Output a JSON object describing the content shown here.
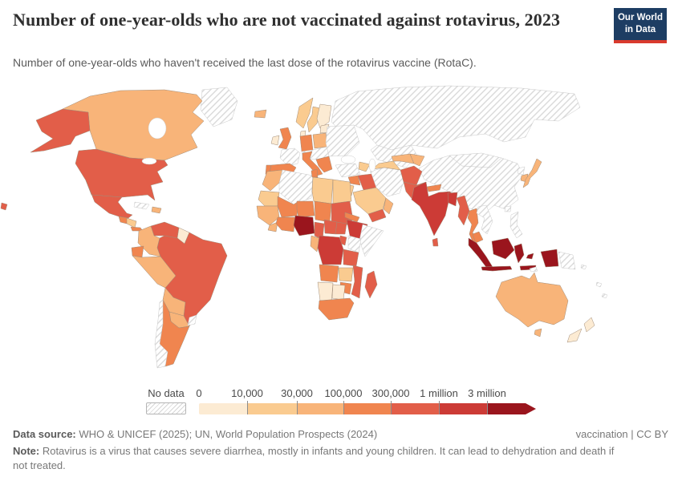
{
  "header": {
    "title": "Number of one-year-olds who are not vaccinated against rotavirus, 2023",
    "subtitle": "Number of one-year-olds who haven't received the last dose of the rotavirus vaccine (RotaC).",
    "logo": {
      "line1": "Our World",
      "line2": "in Data",
      "bg": "#1d3d63",
      "accent": "#d93a2d"
    }
  },
  "legend": {
    "no_data_label": "No data",
    "tick_labels": [
      "0",
      "10,000",
      "30,000",
      "100,000",
      "300,000",
      "1 million",
      "3 million"
    ],
    "colors": [
      "#fcebd3",
      "#facb90",
      "#f8b479",
      "#f0854f",
      "#e25e49",
      "#cc3b36",
      "#9a151d"
    ],
    "hatch_line_color": "#d6d6d6"
  },
  "chart_data": {
    "type": "heatmap",
    "subtype": "world-choropleth",
    "title": "Number of one-year-olds who are not vaccinated against rotavirus, 2023",
    "unit": "one-year-old children not vaccinated",
    "bin_edges": [
      "0",
      "10,000",
      "30,000",
      "100,000",
      "300,000",
      "1 million",
      "3 million"
    ],
    "legend_position": "bottom",
    "regions": [
      {
        "name": "russia",
        "bin": "no-data"
      },
      {
        "name": "china",
        "bin": "no-data"
      },
      {
        "name": "mongolia",
        "bin": "no-data"
      },
      {
        "name": "kazakhstan",
        "bin": "no-data"
      },
      {
        "name": "greenland",
        "bin": "no-data"
      },
      {
        "name": "canada",
        "bin": 2
      },
      {
        "name": "alaska",
        "bin": 4
      },
      {
        "name": "usa",
        "bin": 4
      },
      {
        "name": "hawaii",
        "bin": 4
      },
      {
        "name": "mexico",
        "bin": 4
      },
      {
        "name": "guatemala",
        "bin": 3
      },
      {
        "name": "honduras-nicaragua",
        "bin": 1
      },
      {
        "name": "panama-costa-rica",
        "bin": 3
      },
      {
        "name": "cuba",
        "bin": "no-data"
      },
      {
        "name": "hispaniola",
        "bin": 2
      },
      {
        "name": "trinidad",
        "bin": 3
      },
      {
        "name": "venezuela",
        "bin": 4
      },
      {
        "name": "colombia",
        "bin": 2
      },
      {
        "name": "guyana-suriname",
        "bin": 0
      },
      {
        "name": "ecuador",
        "bin": 3
      },
      {
        "name": "brazil",
        "bin": 4
      },
      {
        "name": "peru",
        "bin": 2
      },
      {
        "name": "bolivia",
        "bin": 2
      },
      {
        "name": "paraguay",
        "bin": 2
      },
      {
        "name": "argentina",
        "bin": 3
      },
      {
        "name": "chile",
        "bin": "no-data"
      },
      {
        "name": "uruguay",
        "bin": "no-data"
      },
      {
        "name": "iceland",
        "bin": 2
      },
      {
        "name": "norway",
        "bin": 1
      },
      {
        "name": "sweden",
        "bin": 1
      },
      {
        "name": "finland",
        "bin": 0
      },
      {
        "name": "denmark",
        "bin": 0
      },
      {
        "name": "baltics",
        "bin": 0
      },
      {
        "name": "uk",
        "bin": 3
      },
      {
        "name": "ireland",
        "bin": 0
      },
      {
        "name": "france",
        "bin": "no-data"
      },
      {
        "name": "spain",
        "bin": 3
      },
      {
        "name": "portugal",
        "bin": 3
      },
      {
        "name": "germany",
        "bin": 3
      },
      {
        "name": "poland",
        "bin": 2
      },
      {
        "name": "central-europe",
        "bin": "no-data"
      },
      {
        "name": "italy",
        "bin": 3
      },
      {
        "name": "sicily",
        "bin": 3
      },
      {
        "name": "balkans",
        "bin": 3
      },
      {
        "name": "ukraine-region",
        "bin": "no-data"
      },
      {
        "name": "turkey",
        "bin": "no-data"
      },
      {
        "name": "caucasus",
        "bin": 1
      },
      {
        "name": "syria",
        "bin": 3
      },
      {
        "name": "levant",
        "bin": 1
      },
      {
        "name": "iraq",
        "bin": 4
      },
      {
        "name": "saudi-arabia",
        "bin": 1
      },
      {
        "name": "yemen",
        "bin": 4
      },
      {
        "name": "oman",
        "bin": 2
      },
      {
        "name": "iran",
        "bin": "no-data"
      },
      {
        "name": "turkmenistan",
        "bin": 1
      },
      {
        "name": "uzbekistan",
        "bin": 2
      },
      {
        "name": "kyrgyz-tajik",
        "bin": 2
      },
      {
        "name": "afghanistan",
        "bin": 4
      },
      {
        "name": "pakistan",
        "bin": 4
      },
      {
        "name": "india",
        "bin": 5
      },
      {
        "name": "nepal",
        "bin": 3
      },
      {
        "name": "bangladesh",
        "bin": 5
      },
      {
        "name": "sri-lanka",
        "bin": 4
      },
      {
        "name": "myanmar",
        "bin": 4
      },
      {
        "name": "thailand",
        "bin": 3
      },
      {
        "name": "laos-vietnam",
        "bin": "no-data"
      },
      {
        "name": "malaysia",
        "bin": 3
      },
      {
        "name": "taiwan",
        "bin": "no-data"
      },
      {
        "name": "north-korea",
        "bin": "no-data"
      },
      {
        "name": "south-korea",
        "bin": 2
      },
      {
        "name": "japan",
        "bin": 2
      },
      {
        "name": "philippines",
        "bin": "no-data"
      },
      {
        "name": "indonesia-sumatra",
        "bin": 6
      },
      {
        "name": "indonesia-java",
        "bin": 6
      },
      {
        "name": "indonesia-borneo",
        "bin": 6
      },
      {
        "name": "indonesia-sulawesi",
        "bin": 6
      },
      {
        "name": "indonesia-islands",
        "bin": 6
      },
      {
        "name": "indonesia-maluku",
        "bin": 6
      },
      {
        "name": "indonesia-papua",
        "bin": 6
      },
      {
        "name": "timor",
        "bin": "no-data"
      },
      {
        "name": "papua-new-guinea",
        "bin": "no-data"
      },
      {
        "name": "australia",
        "bin": 2
      },
      {
        "name": "tasmania",
        "bin": 2
      },
      {
        "name": "new-zealand-north",
        "bin": 0
      },
      {
        "name": "new-zealand-south",
        "bin": 0
      },
      {
        "name": "pacific-1",
        "bin": "no-data"
      },
      {
        "name": "pacific-2",
        "bin": "no-data"
      },
      {
        "name": "pacific-3",
        "bin": "no-data"
      },
      {
        "name": "morocco",
        "bin": 2
      },
      {
        "name": "algeria",
        "bin": "no-data"
      },
      {
        "name": "tunisia",
        "bin": 3
      },
      {
        "name": "libya",
        "bin": 1
      },
      {
        "name": "egypt",
        "bin": 1
      },
      {
        "name": "mauritania",
        "bin": 1
      },
      {
        "name": "mali",
        "bin": 3
      },
      {
        "name": "niger",
        "bin": 3
      },
      {
        "name": "chad",
        "bin": 3
      },
      {
        "name": "sudan",
        "bin": 4
      },
      {
        "name": "senegal-guinea",
        "bin": 2
      },
      {
        "name": "sierra-leone-liberia",
        "bin": 2
      },
      {
        "name": "ivory-coast-ghana",
        "bin": 3
      },
      {
        "name": "nigeria",
        "bin": 6
      },
      {
        "name": "cameroon",
        "bin": 4
      },
      {
        "name": "central-african-republic",
        "bin": 4
      },
      {
        "name": "south-sudan",
        "bin": 4
      },
      {
        "name": "eritrea",
        "bin": 3
      },
      {
        "name": "ethiopia",
        "bin": 5
      },
      {
        "name": "somalia",
        "bin": "no-data"
      },
      {
        "name": "kenya",
        "bin": "no-data"
      },
      {
        "name": "uganda",
        "bin": 4
      },
      {
        "name": "congo-gabon",
        "bin": 2
      },
      {
        "name": "drc",
        "bin": 5
      },
      {
        "name": "tanzania",
        "bin": 4
      },
      {
        "name": "angola",
        "bin": 3
      },
      {
        "name": "zambia",
        "bin": 1
      },
      {
        "name": "mozambique",
        "bin": 4
      },
      {
        "name": "zimbabwe",
        "bin": 3
      },
      {
        "name": "namibia",
        "bin": 0
      },
      {
        "name": "botswana",
        "bin": 0
      },
      {
        "name": "south-africa",
        "bin": 3
      },
      {
        "name": "madagascar",
        "bin": 4
      }
    ]
  },
  "footer": {
    "source_label": "Data source:",
    "source_text": " WHO & UNICEF (2025); UN, World Population Prospects (2024)",
    "right_text": "vaccination | CC BY",
    "note_label": "Note:",
    "note_text": " Rotavirus is a virus that causes severe diarrhea, mostly in infants and young children. It can lead to dehydration and death if not treated."
  }
}
